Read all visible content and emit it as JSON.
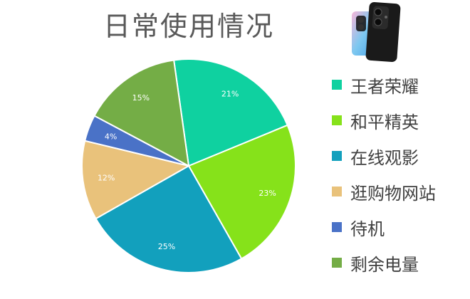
{
  "chart_data": {
    "type": "pie",
    "title": "日常使用情况",
    "categories": [
      "王者荣耀",
      "和平精英",
      "在线观影",
      "逛购物网站",
      "待机",
      "剩余电量"
    ],
    "values": [
      21,
      23,
      25,
      12,
      4,
      15
    ],
    "data_labels": [
      "21%",
      "23%",
      "25%",
      "12%",
      "4%",
      "15%"
    ],
    "colors": [
      "#0fd1a0",
      "#86e21a",
      "#12a0bd",
      "#e9c27b",
      "#4a72c7",
      "#74ad46"
    ],
    "legend_position": "right",
    "start_angle_deg": -8
  },
  "image": {
    "icon": "phone-image"
  }
}
